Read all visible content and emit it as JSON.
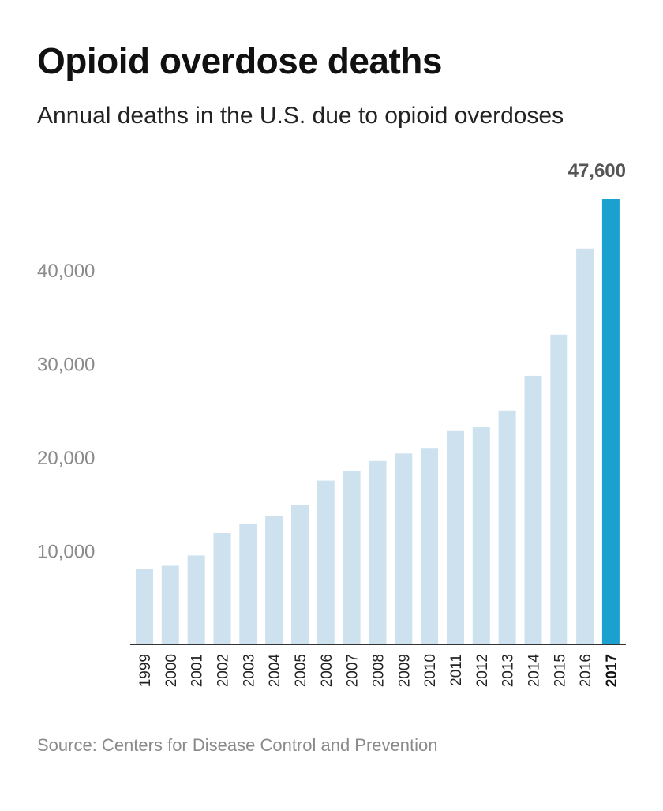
{
  "header": {
    "title": "Opioid overdose deaths",
    "subtitle": "Annual deaths in the U.S. due to opioid overdoses"
  },
  "footer": {
    "source": "Source: Centers for Disease Control and Prevention"
  },
  "colors": {
    "bar": "#cde2ee",
    "highlight": "#1ba1cf",
    "axis": "#333333"
  },
  "chart_data": {
    "type": "bar",
    "title": "Opioid overdose deaths",
    "subtitle": "Annual deaths in the U.S. due to opioid overdoses",
    "xlabel": "",
    "ylabel": "",
    "categories": [
      "1999",
      "2000",
      "2001",
      "2002",
      "2003",
      "2004",
      "2005",
      "2006",
      "2007",
      "2008",
      "2009",
      "2010",
      "2011",
      "2012",
      "2013",
      "2014",
      "2015",
      "2016",
      "2017"
    ],
    "values": [
      8050,
      8400,
      9500,
      11900,
      12900,
      13750,
      14900,
      17500,
      18500,
      19600,
      20400,
      21000,
      22800,
      23200,
      25000,
      28700,
      33100,
      42300,
      47600
    ],
    "ylim": [
      0,
      47600
    ],
    "yticks": [
      10000,
      20000,
      30000,
      40000
    ],
    "ytick_labels": [
      "10,000",
      "20,000",
      "30,000",
      "40,000"
    ],
    "grid": false,
    "highlight_index": 18,
    "annotation": "47,600"
  }
}
